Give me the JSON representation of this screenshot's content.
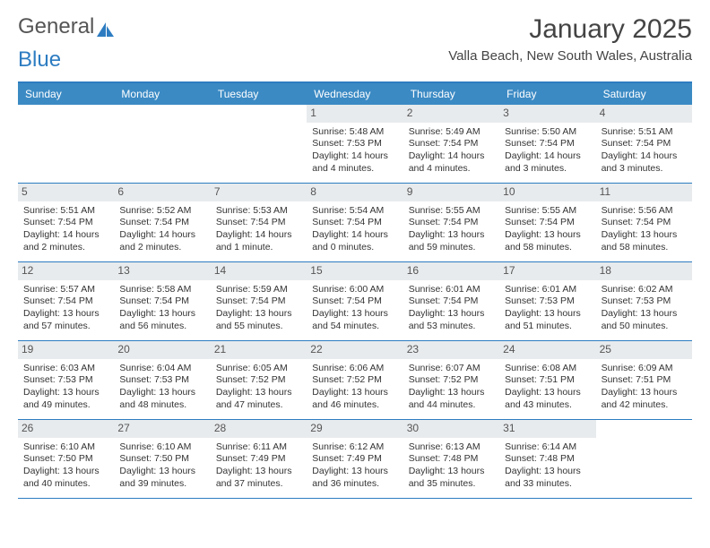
{
  "brand": {
    "part1": "General",
    "part2": "Blue"
  },
  "title": "January 2025",
  "location": "Valla Beach, New South Wales, Australia",
  "day_headers": [
    "Sunday",
    "Monday",
    "Tuesday",
    "Wednesday",
    "Thursday",
    "Friday",
    "Saturday"
  ],
  "colors": {
    "header_bg": "#3b8ac4",
    "rule": "#2d7cc1",
    "daynum_bg": "#e8ebed"
  },
  "leading_blanks": 3,
  "trailing_blanks": 1,
  "days": [
    {
      "n": "1",
      "sunrise": "5:48 AM",
      "sunset": "7:53 PM",
      "daylight": "14 hours and 4 minutes."
    },
    {
      "n": "2",
      "sunrise": "5:49 AM",
      "sunset": "7:54 PM",
      "daylight": "14 hours and 4 minutes."
    },
    {
      "n": "3",
      "sunrise": "5:50 AM",
      "sunset": "7:54 PM",
      "daylight": "14 hours and 3 minutes."
    },
    {
      "n": "4",
      "sunrise": "5:51 AM",
      "sunset": "7:54 PM",
      "daylight": "14 hours and 3 minutes."
    },
    {
      "n": "5",
      "sunrise": "5:51 AM",
      "sunset": "7:54 PM",
      "daylight": "14 hours and 2 minutes."
    },
    {
      "n": "6",
      "sunrise": "5:52 AM",
      "sunset": "7:54 PM",
      "daylight": "14 hours and 2 minutes."
    },
    {
      "n": "7",
      "sunrise": "5:53 AM",
      "sunset": "7:54 PM",
      "daylight": "14 hours and 1 minute."
    },
    {
      "n": "8",
      "sunrise": "5:54 AM",
      "sunset": "7:54 PM",
      "daylight": "14 hours and 0 minutes."
    },
    {
      "n": "9",
      "sunrise": "5:55 AM",
      "sunset": "7:54 PM",
      "daylight": "13 hours and 59 minutes."
    },
    {
      "n": "10",
      "sunrise": "5:55 AM",
      "sunset": "7:54 PM",
      "daylight": "13 hours and 58 minutes."
    },
    {
      "n": "11",
      "sunrise": "5:56 AM",
      "sunset": "7:54 PM",
      "daylight": "13 hours and 58 minutes."
    },
    {
      "n": "12",
      "sunrise": "5:57 AM",
      "sunset": "7:54 PM",
      "daylight": "13 hours and 57 minutes."
    },
    {
      "n": "13",
      "sunrise": "5:58 AM",
      "sunset": "7:54 PM",
      "daylight": "13 hours and 56 minutes."
    },
    {
      "n": "14",
      "sunrise": "5:59 AM",
      "sunset": "7:54 PM",
      "daylight": "13 hours and 55 minutes."
    },
    {
      "n": "15",
      "sunrise": "6:00 AM",
      "sunset": "7:54 PM",
      "daylight": "13 hours and 54 minutes."
    },
    {
      "n": "16",
      "sunrise": "6:01 AM",
      "sunset": "7:54 PM",
      "daylight": "13 hours and 53 minutes."
    },
    {
      "n": "17",
      "sunrise": "6:01 AM",
      "sunset": "7:53 PM",
      "daylight": "13 hours and 51 minutes."
    },
    {
      "n": "18",
      "sunrise": "6:02 AM",
      "sunset": "7:53 PM",
      "daylight": "13 hours and 50 minutes."
    },
    {
      "n": "19",
      "sunrise": "6:03 AM",
      "sunset": "7:53 PM",
      "daylight": "13 hours and 49 minutes."
    },
    {
      "n": "20",
      "sunrise": "6:04 AM",
      "sunset": "7:53 PM",
      "daylight": "13 hours and 48 minutes."
    },
    {
      "n": "21",
      "sunrise": "6:05 AM",
      "sunset": "7:52 PM",
      "daylight": "13 hours and 47 minutes."
    },
    {
      "n": "22",
      "sunrise": "6:06 AM",
      "sunset": "7:52 PM",
      "daylight": "13 hours and 46 minutes."
    },
    {
      "n": "23",
      "sunrise": "6:07 AM",
      "sunset": "7:52 PM",
      "daylight": "13 hours and 44 minutes."
    },
    {
      "n": "24",
      "sunrise": "6:08 AM",
      "sunset": "7:51 PM",
      "daylight": "13 hours and 43 minutes."
    },
    {
      "n": "25",
      "sunrise": "6:09 AM",
      "sunset": "7:51 PM",
      "daylight": "13 hours and 42 minutes."
    },
    {
      "n": "26",
      "sunrise": "6:10 AM",
      "sunset": "7:50 PM",
      "daylight": "13 hours and 40 minutes."
    },
    {
      "n": "27",
      "sunrise": "6:10 AM",
      "sunset": "7:50 PM",
      "daylight": "13 hours and 39 minutes."
    },
    {
      "n": "28",
      "sunrise": "6:11 AM",
      "sunset": "7:49 PM",
      "daylight": "13 hours and 37 minutes."
    },
    {
      "n": "29",
      "sunrise": "6:12 AM",
      "sunset": "7:49 PM",
      "daylight": "13 hours and 36 minutes."
    },
    {
      "n": "30",
      "sunrise": "6:13 AM",
      "sunset": "7:48 PM",
      "daylight": "13 hours and 35 minutes."
    },
    {
      "n": "31",
      "sunrise": "6:14 AM",
      "sunset": "7:48 PM",
      "daylight": "13 hours and 33 minutes."
    }
  ],
  "labels": {
    "sunrise": "Sunrise:",
    "sunset": "Sunset:",
    "daylight": "Daylight:"
  }
}
